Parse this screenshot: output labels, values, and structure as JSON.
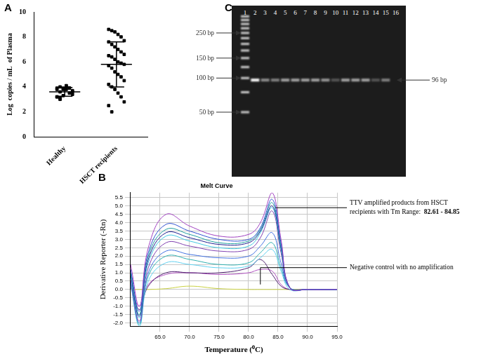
{
  "chart_data": [
    {
      "panel": "A",
      "type": "strip",
      "categories": [
        "Healthy",
        "HSCT recipients"
      ],
      "values": [
        [
          3.9,
          4.0,
          3.8,
          4.1,
          3.9,
          3.7,
          3.8,
          3.6,
          3.9,
          4.0,
          3.5,
          3.4,
          3.2,
          3.1,
          3.3,
          3.8,
          3.9,
          3.6,
          3.2,
          3.0
        ],
        [
          8.6,
          8.5,
          8.4,
          8.2,
          8.0,
          7.7,
          7.6,
          7.4,
          7.2,
          7.0,
          6.8,
          6.6,
          6.5,
          6.4,
          6.2,
          6.0,
          5.9,
          5.8,
          5.7,
          5.5,
          5.2,
          5.0,
          4.8,
          4.5,
          4.2,
          4.0,
          3.8,
          3.5,
          3.2,
          2.8,
          2.5,
          2.0
        ]
      ],
      "mean": [
        3.6,
        5.8
      ],
      "sd": [
        0.35,
        1.8
      ],
      "y_label": "Log  copies / mL  of Plasma",
      "ylim": [
        0,
        10
      ],
      "yticks": [
        0,
        2,
        4,
        6,
        8,
        10
      ],
      "color": "#000000",
      "marker": "square",
      "grid": false
    },
    {
      "panel": "B",
      "type": "line",
      "title": "Melt Curve",
      "x_label": "Temperature (⁰C)",
      "y_label": "Derivative Reporter (-Rn)",
      "x": [
        60,
        61.5,
        63,
        66,
        70,
        75,
        80,
        82,
        84,
        85.5,
        87,
        90,
        95
      ],
      "series": [
        {
          "color": "#a040c0",
          "values": [
            1.5,
            -1.0,
            2.5,
            4.5,
            3.8,
            3.2,
            3.3,
            4.0,
            5.8,
            3.0,
            0.1,
            0,
            0
          ]
        },
        {
          "color": "#3050d0",
          "values": [
            1.2,
            -1.3,
            2.2,
            3.9,
            3.5,
            3.0,
            3.0,
            3.7,
            5.4,
            2.8,
            0.1,
            0,
            0
          ]
        },
        {
          "color": "#20a0a0",
          "values": [
            1.0,
            -1.5,
            2.0,
            3.6,
            3.3,
            2.8,
            2.9,
            3.6,
            5.2,
            2.6,
            0.1,
            0,
            0
          ]
        },
        {
          "color": "#202090",
          "values": [
            0.9,
            -1.6,
            1.8,
            3.4,
            3.1,
            2.7,
            2.8,
            3.5,
            5.0,
            2.5,
            0.1,
            0,
            0
          ]
        },
        {
          "color": "#40c8e0",
          "values": [
            0.8,
            -1.7,
            1.6,
            3.2,
            2.9,
            2.5,
            2.6,
            3.4,
            4.9,
            2.4,
            0.1,
            0,
            0
          ]
        },
        {
          "color": "#8040b0",
          "values": [
            0.6,
            -1.9,
            1.3,
            2.8,
            2.6,
            2.3,
            2.4,
            3.1,
            4.7,
            2.2,
            0.1,
            0,
            0
          ]
        },
        {
          "color": "#4070e0",
          "values": [
            0.5,
            -2.0,
            1.0,
            2.3,
            2.1,
            1.9,
            2.0,
            2.6,
            3.4,
            1.6,
            0.1,
            0,
            0
          ]
        },
        {
          "color": "#30b0b0",
          "values": [
            0.4,
            -2.1,
            0.8,
            2.0,
            1.8,
            1.5,
            1.6,
            2.2,
            2.8,
            1.3,
            0.1,
            0,
            0
          ]
        },
        {
          "color": "#60d0f0",
          "values": [
            0.3,
            -2.2,
            0.5,
            1.6,
            1.5,
            1.3,
            1.4,
            1.9,
            2.4,
            1.1,
            0,
            0,
            0
          ]
        },
        {
          "color": "#502070",
          "values": [
            0.2,
            -1.2,
            0.2,
            1.0,
            1.0,
            1.0,
            1.3,
            1.8,
            0.9,
            0.2,
            0,
            0,
            0
          ]
        },
        {
          "color": "#b050c0",
          "values": [
            0.1,
            -1.0,
            0.3,
            0.9,
            1.0,
            0.9,
            1.0,
            1.2,
            1.1,
            0.3,
            0,
            0,
            0
          ]
        },
        {
          "color": "#c8d040",
          "values": [
            0,
            0,
            0,
            0.05,
            0.2,
            0.05,
            0,
            0,
            0,
            0,
            0,
            0,
            0
          ]
        }
      ],
      "xlim": [
        60,
        95
      ],
      "xticks": [
        {
          "value": 65,
          "label": "65.0"
        },
        {
          "value": 70,
          "label": "70.0"
        },
        {
          "value": 75,
          "label": "75.0"
        },
        {
          "value": 80,
          "label": "80.0"
        },
        {
          "value": 85,
          "label": "85.0"
        },
        {
          "value": 90,
          "label": "90.0"
        },
        {
          "value": 95,
          "label": "95.0"
        }
      ],
      "ylim": [
        -2.2,
        5.8
      ],
      "yticks": [
        {
          "value": -2,
          "label": "-2.0"
        },
        -1.5,
        {
          "value": -1,
          "label": "-1.0"
        },
        -0.5,
        {
          "value": 0,
          "label": "0.0"
        },
        0.5,
        {
          "value": 1,
          "label": "1.0"
        },
        1.5,
        {
          "value": 2,
          "label": "2.0"
        },
        2.5,
        {
          "value": 3,
          "label": "3.0"
        },
        3.5,
        {
          "value": 4,
          "label": "4.0"
        },
        4.5,
        {
          "value": 5,
          "label": "5.0"
        },
        5.5
      ],
      "grid": true,
      "annotations": [
        {
          "lines": [
            "TTV amplified products from HSCT",
            "recipients with Tm Range:"
          ],
          "emphasis": "82.61 - 84.85",
          "x": 84.6,
          "y": 4.9
        },
        {
          "lines": [
            "Negative control with no amplification"
          ],
          "x": 82,
          "y": 0.3
        }
      ]
    }
  ],
  "gel": {
    "panel": "C",
    "lanes": [
      "1",
      "2",
      "3",
      "4",
      "5",
      "6",
      "7",
      "8",
      "9",
      "10",
      "11",
      "12",
      "13",
      "14",
      "15",
      "16"
    ],
    "ladder_lane": "1",
    "ladder_bp": [
      50,
      75,
      100,
      125,
      150,
      175,
      200,
      225,
      250,
      275,
      300,
      325,
      350
    ],
    "markers": [
      {
        "bp": 250,
        "label": "250 bp"
      },
      {
        "bp": 150,
        "label": "150 bp"
      },
      {
        "bp": 100,
        "label": "100 bp"
      },
      {
        "bp": 50,
        "label": "50 bp"
      }
    ],
    "product": {
      "bp": 96,
      "label": "96 bp"
    },
    "band_intensity": [
      0.8,
      1.0,
      0.5,
      0.45,
      0.6,
      0.6,
      0.6,
      0.6,
      0.55,
      0.25,
      0.6,
      0.6,
      0.6,
      0.25,
      0.45,
      0
    ]
  }
}
